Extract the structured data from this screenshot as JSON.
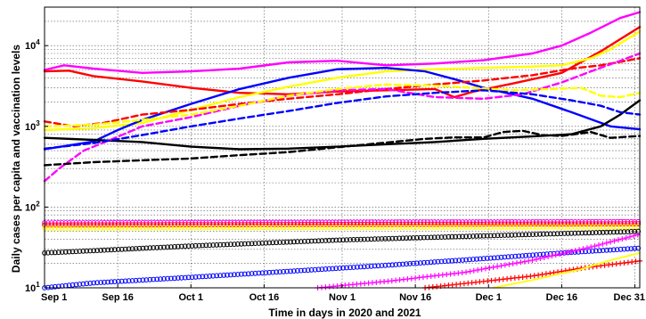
{
  "chart_data": {
    "type": "line",
    "title": "",
    "xlabel": "Time in days in 2020 and 2021",
    "ylabel": "Daily cases per capita and vaccination levels",
    "x_ticks": [
      {
        "day": 0,
        "label": "Sep 1"
      },
      {
        "day": 15,
        "label": "Sep 16"
      },
      {
        "day": 30,
        "label": "Oct 1"
      },
      {
        "day": 45,
        "label": "Oct 16"
      },
      {
        "day": 61,
        "label": "Nov 1"
      },
      {
        "day": 76,
        "label": "Nov 16"
      },
      {
        "day": 91,
        "label": "Dec 1"
      },
      {
        "day": 106,
        "label": "Dec 16"
      },
      {
        "day": 121,
        "label": "Dec 31"
      }
    ],
    "xlim": [
      0,
      122
    ],
    "y_scale": "log",
    "ylim": [
      10,
      30000
    ],
    "y_ticks": [
      {
        "value": 10,
        "base": "10",
        "exp": "1"
      },
      {
        "value": 100,
        "base": "10",
        "exp": "2"
      },
      {
        "value": 1000,
        "base": "10",
        "exp": "3"
      },
      {
        "value": 10000,
        "base": "10",
        "exp": "4"
      }
    ],
    "grid": true,
    "legend": "none",
    "series": [
      {
        "color": "#ff00ff",
        "style": "solid",
        "points": [
          [
            0,
            5000
          ],
          [
            4,
            5700
          ],
          [
            10,
            5200
          ],
          [
            20,
            4600
          ],
          [
            30,
            4800
          ],
          [
            40,
            5200
          ],
          [
            50,
            6200
          ],
          [
            60,
            6500
          ],
          [
            70,
            5700
          ],
          [
            80,
            6000
          ],
          [
            90,
            6600
          ],
          [
            100,
            8000
          ],
          [
            106,
            10000
          ],
          [
            112,
            14500
          ],
          [
            118,
            22000
          ],
          [
            122,
            26000
          ]
        ]
      },
      {
        "color": "#ff0000",
        "style": "solid",
        "points": [
          [
            0,
            4800
          ],
          [
            5,
            4900
          ],
          [
            10,
            4200
          ],
          [
            20,
            3600
          ],
          [
            30,
            3000
          ],
          [
            40,
            2600
          ],
          [
            50,
            2500
          ],
          [
            60,
            2700
          ],
          [
            70,
            2800
          ],
          [
            80,
            2900
          ],
          [
            84,
            2300
          ],
          [
            88,
            2700
          ],
          [
            96,
            3400
          ],
          [
            106,
            4600
          ],
          [
            114,
            8500
          ],
          [
            122,
            17000
          ]
        ]
      },
      {
        "color": "#ffff00",
        "style": "solid",
        "points": [
          [
            0,
            900
          ],
          [
            10,
            950
          ],
          [
            20,
            1100
          ],
          [
            30,
            1600
          ],
          [
            40,
            2300
          ],
          [
            50,
            3100
          ],
          [
            60,
            4000
          ],
          [
            70,
            4800
          ],
          [
            80,
            5100
          ],
          [
            90,
            5300
          ],
          [
            100,
            5500
          ],
          [
            106,
            5700
          ],
          [
            112,
            7000
          ],
          [
            116,
            9000
          ],
          [
            122,
            15000
          ]
        ]
      },
      {
        "color": "#0000ff",
        "style": "solid",
        "points": [
          [
            0,
            520
          ],
          [
            10,
            650
          ],
          [
            15,
            900
          ],
          [
            20,
            1200
          ],
          [
            30,
            1900
          ],
          [
            40,
            2900
          ],
          [
            50,
            4000
          ],
          [
            60,
            5100
          ],
          [
            70,
            5300
          ],
          [
            78,
            4800
          ],
          [
            85,
            3700
          ],
          [
            90,
            3000
          ],
          [
            100,
            2200
          ],
          [
            108,
            1500
          ],
          [
            116,
            1000
          ],
          [
            122,
            920
          ]
        ]
      },
      {
        "color": "#000000",
        "style": "solid",
        "points": [
          [
            0,
            720
          ],
          [
            10,
            680
          ],
          [
            20,
            640
          ],
          [
            30,
            560
          ],
          [
            40,
            520
          ],
          [
            50,
            530
          ],
          [
            60,
            560
          ],
          [
            70,
            600
          ],
          [
            80,
            640
          ],
          [
            90,
            700
          ],
          [
            100,
            750
          ],
          [
            108,
            800
          ],
          [
            114,
            1000
          ],
          [
            118,
            1400
          ],
          [
            122,
            2100
          ]
        ]
      },
      {
        "color": "#ff0000",
        "style": "dashed",
        "points": [
          [
            0,
            1150
          ],
          [
            6,
            1000
          ],
          [
            12,
            1100
          ],
          [
            20,
            1400
          ],
          [
            30,
            1600
          ],
          [
            40,
            1900
          ],
          [
            50,
            2200
          ],
          [
            60,
            2500
          ],
          [
            70,
            2900
          ],
          [
            80,
            3300
          ],
          [
            90,
            3700
          ],
          [
            100,
            4300
          ],
          [
            108,
            5200
          ],
          [
            114,
            5700
          ],
          [
            118,
            6300
          ],
          [
            122,
            7000
          ]
        ]
      },
      {
        "color": "#ff00ff",
        "style": "dashed",
        "points": [
          [
            0,
            210
          ],
          [
            3,
            300
          ],
          [
            8,
            500
          ],
          [
            14,
            700
          ],
          [
            20,
            1000
          ],
          [
            30,
            1300
          ],
          [
            40,
            1800
          ],
          [
            50,
            2400
          ],
          [
            60,
            2800
          ],
          [
            70,
            2900
          ],
          [
            80,
            2300
          ],
          [
            90,
            2200
          ],
          [
            98,
            2500
          ],
          [
            106,
            3500
          ],
          [
            112,
            4800
          ],
          [
            118,
            6500
          ],
          [
            122,
            8000
          ]
        ]
      },
      {
        "color": "#ffff00",
        "style": "dashed",
        "points": [
          [
            0,
            1000
          ],
          [
            10,
            1050
          ],
          [
            20,
            1200
          ],
          [
            30,
            1400
          ],
          [
            40,
            1800
          ],
          [
            50,
            2400
          ],
          [
            60,
            2900
          ],
          [
            70,
            3300
          ],
          [
            80,
            3200
          ],
          [
            88,
            3000
          ],
          [
            96,
            2800
          ],
          [
            104,
            2900
          ],
          [
            110,
            3000
          ],
          [
            114,
            2400
          ],
          [
            118,
            2300
          ],
          [
            122,
            2600
          ]
        ]
      },
      {
        "color": "#0000ff",
        "style": "dashed",
        "points": [
          [
            0,
            530
          ],
          [
            10,
            620
          ],
          [
            20,
            780
          ],
          [
            30,
            1000
          ],
          [
            40,
            1250
          ],
          [
            50,
            1550
          ],
          [
            60,
            1950
          ],
          [
            70,
            2350
          ],
          [
            80,
            2600
          ],
          [
            90,
            2800
          ],
          [
            100,
            2500
          ],
          [
            108,
            2100
          ],
          [
            114,
            1800
          ],
          [
            118,
            1500
          ],
          [
            122,
            1400
          ]
        ]
      },
      {
        "color": "#000000",
        "style": "dashed",
        "points": [
          [
            0,
            330
          ],
          [
            10,
            360
          ],
          [
            20,
            380
          ],
          [
            30,
            400
          ],
          [
            40,
            440
          ],
          [
            50,
            480
          ],
          [
            60,
            550
          ],
          [
            70,
            630
          ],
          [
            78,
            700
          ],
          [
            84,
            730
          ],
          [
            90,
            730
          ],
          [
            94,
            850
          ],
          [
            98,
            880
          ],
          [
            102,
            780
          ],
          [
            106,
            760
          ],
          [
            112,
            850
          ],
          [
            116,
            720
          ],
          [
            122,
            760
          ]
        ]
      },
      {
        "color": "#ff00ff",
        "style": "circles",
        "points": [
          [
            0,
            64
          ],
          [
            122,
            66
          ]
        ]
      },
      {
        "color": "#ff0000",
        "style": "circles",
        "points": [
          [
            0,
            60
          ],
          [
            122,
            62
          ]
        ]
      },
      {
        "color": "#ffff00",
        "style": "circles",
        "points": [
          [
            0,
            55
          ],
          [
            122,
            57
          ]
        ]
      },
      {
        "color": "#000000",
        "style": "circles",
        "points": [
          [
            0,
            27
          ],
          [
            30,
            33
          ],
          [
            60,
            39
          ],
          [
            90,
            44
          ],
          [
            106,
            47
          ],
          [
            122,
            50
          ]
        ]
      },
      {
        "color": "#0000ff",
        "style": "circles",
        "points": [
          [
            0,
            10
          ],
          [
            10,
            11.5
          ],
          [
            30,
            13.5
          ],
          [
            50,
            16
          ],
          [
            70,
            19
          ],
          [
            90,
            23
          ],
          [
            106,
            27
          ],
          [
            122,
            31
          ]
        ]
      },
      {
        "color": "#ff00ff",
        "style": "plus",
        "points": [
          [
            56,
            10
          ],
          [
            70,
            12
          ],
          [
            86,
            15.5
          ],
          [
            100,
            22
          ],
          [
            112,
            32
          ],
          [
            122,
            46
          ]
        ]
      },
      {
        "color": "#ff0000",
        "style": "plus",
        "points": [
          [
            78,
            10
          ],
          [
            90,
            12
          ],
          [
            100,
            14
          ],
          [
            110,
            17.5
          ],
          [
            122,
            21.5
          ]
        ]
      },
      {
        "color": "#ffff00",
        "style": "solid-thin",
        "points": [
          [
            92,
            10
          ],
          [
            100,
            12.5
          ],
          [
            110,
            17
          ],
          [
            116,
            22
          ],
          [
            122,
            27
          ]
        ]
      }
    ]
  }
}
